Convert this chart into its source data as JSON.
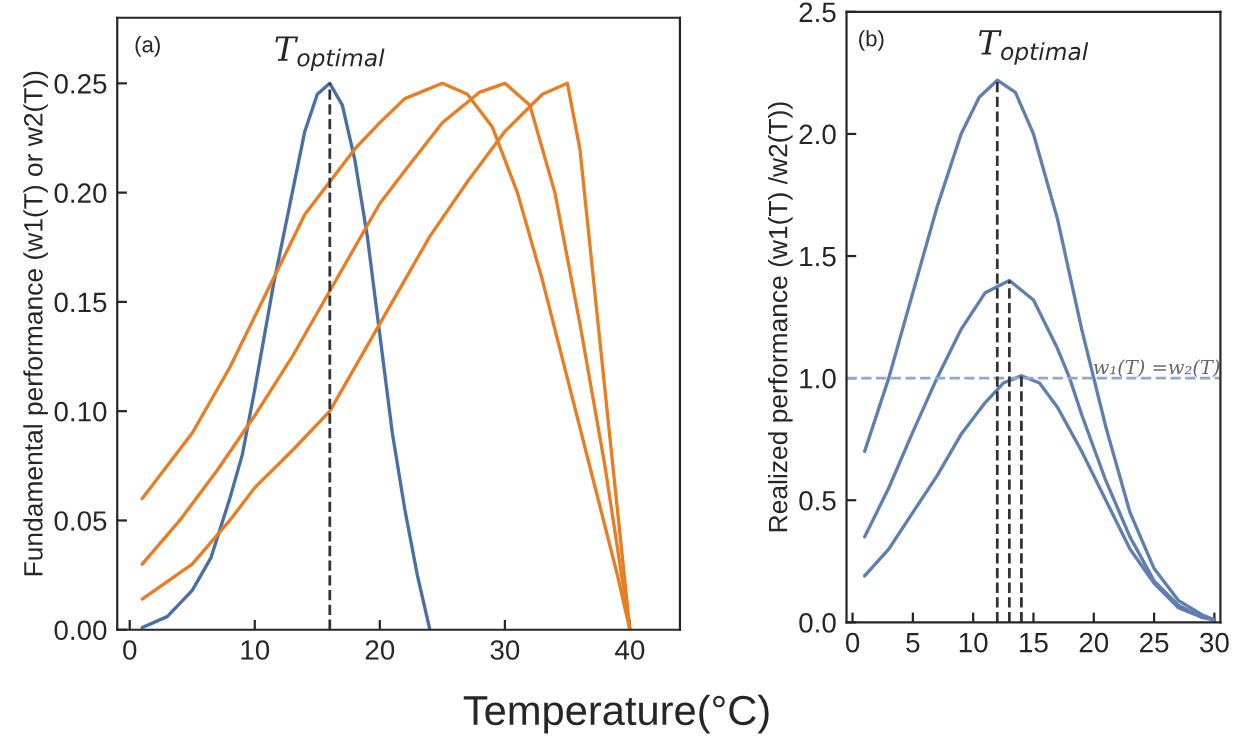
{
  "chart_data": [
    {
      "type": "line",
      "xlabel": "Temperature(°C)",
      "ylabel": "Fundamental performance (w1(T) or w2(T))",
      "xlim": [
        -1,
        44
      ],
      "xticks": [
        0,
        10,
        20,
        30,
        40
      ],
      "ylim": [
        0,
        0.28
      ],
      "yticks": [
        {
          "value": 0,
          "label": "0.00"
        },
        0.05,
        {
          "value": 0.1,
          "label": "0.10"
        },
        0.15,
        {
          "value": 0.2,
          "label": "0.20"
        },
        0.25
      ],
      "grid": false,
      "legend": false,
      "annotations": [
        "(a)"
      ],
      "ref_lines": [
        {
          "axis": "x",
          "value": 16,
          "label": "T$_{optimal}$",
          "color": "#333333",
          "line_style": "dashed"
        }
      ],
      "series": [
        {
          "color": "#4a6fa5",
          "x": [
            1,
            3,
            5,
            6.5,
            8,
            9,
            10,
            11.5,
            13,
            14,
            15,
            16,
            17,
            18,
            19,
            20,
            21,
            22,
            23,
            24
          ],
          "values": [
            0.001,
            0.006,
            0.018,
            0.033,
            0.06,
            0.08,
            0.11,
            0.158,
            0.2,
            0.228,
            0.245,
            0.25,
            0.24,
            0.215,
            0.18,
            0.135,
            0.09,
            0.055,
            0.025,
            0
          ]
        },
        {
          "color": "#e87d22",
          "x": [
            1,
            5,
            8,
            11,
            14,
            16,
            18,
            20,
            22,
            25,
            27,
            29,
            31,
            33,
            35,
            37,
            39,
            40
          ],
          "values": [
            0.06,
            0.09,
            0.12,
            0.155,
            0.19,
            0.205,
            0.22,
            0.232,
            0.243,
            0.25,
            0.245,
            0.23,
            0.2,
            0.16,
            0.115,
            0.07,
            0.025,
            0
          ]
        },
        {
          "color": "#e87d22",
          "x": [
            1,
            4,
            7,
            10,
            13,
            16,
            18,
            20,
            22,
            25,
            28,
            30,
            32,
            34,
            36,
            38,
            40
          ],
          "values": [
            0.03,
            0.05,
            0.073,
            0.098,
            0.125,
            0.155,
            0.175,
            0.195,
            0.21,
            0.232,
            0.246,
            0.25,
            0.24,
            0.2,
            0.14,
            0.075,
            0
          ]
        },
        {
          "color": "#e87d22",
          "x": [
            1,
            5,
            8,
            10,
            13,
            16,
            19,
            21,
            24,
            27,
            30,
            33,
            35,
            36,
            38,
            40
          ],
          "values": [
            0.014,
            0.03,
            0.05,
            0.065,
            0.082,
            0.1,
            0.13,
            0.15,
            0.18,
            0.205,
            0.228,
            0.245,
            0.25,
            0.22,
            0.11,
            0
          ]
        }
      ]
    },
    {
      "type": "line",
      "ylabel": "Realized performance (w1(T) /w2(T))",
      "xlim": [
        -0.5,
        30.5
      ],
      "xticks": [
        0,
        5,
        10,
        15,
        20,
        25,
        30
      ],
      "ylim": [
        0,
        2.5
      ],
      "yticks": [
        {
          "value": 0,
          "label": "0.0"
        },
        0.5,
        {
          "value": 1,
          "label": "1.0"
        },
        1.5,
        {
          "value": 2,
          "label": "2.0"
        },
        2.5
      ],
      "grid": false,
      "legend": false,
      "annotations": [
        "(b)",
        "T$_{optimal}$"
      ],
      "ref_lines": [
        {
          "axis": "y",
          "value": 1.0,
          "label": "w₁(T) =w₂(T)",
          "color": "#8fa8cc",
          "line_style": "dashed"
        },
        {
          "axis": "x",
          "value": 12,
          "color": "#333333",
          "line_style": "dashed"
        },
        {
          "axis": "x",
          "value": 13,
          "color": "#333333",
          "line_style": "dashed"
        },
        {
          "axis": "x",
          "value": 14,
          "color": "#333333",
          "line_style": "dashed"
        }
      ],
      "series": [
        {
          "color": "#5f7fb0",
          "x": [
            1,
            3,
            5,
            7,
            9,
            10.5,
            12,
            13.5,
            15,
            17,
            19,
            20,
            21,
            23,
            25,
            27,
            29,
            30
          ],
          "values": [
            0.7,
            1.0,
            1.35,
            1.7,
            2.0,
            2.15,
            2.22,
            2.17,
            2.0,
            1.65,
            1.2,
            1.0,
            0.8,
            0.45,
            0.22,
            0.09,
            0.03,
            0.01
          ]
        },
        {
          "color": "#5f7fb0",
          "x": [
            1,
            3,
            5,
            7,
            9,
            11,
            13,
            15,
            17,
            18,
            19,
            21,
            23,
            25,
            27,
            29,
            30
          ],
          "values": [
            0.35,
            0.55,
            0.78,
            1.0,
            1.2,
            1.35,
            1.4,
            1.32,
            1.12,
            1.0,
            0.85,
            0.58,
            0.35,
            0.17,
            0.07,
            0.02,
            0.01
          ]
        },
        {
          "color": "#5f7fb0",
          "x": [
            1,
            3,
            5,
            7,
            9,
            11,
            12.5,
            14,
            15.5,
            17,
            19,
            21,
            23,
            25,
            27,
            29,
            30
          ],
          "values": [
            0.19,
            0.3,
            0.45,
            0.6,
            0.77,
            0.9,
            0.98,
            1.01,
            0.98,
            0.88,
            0.7,
            0.5,
            0.3,
            0.16,
            0.06,
            0.02,
            0.01
          ]
        }
      ]
    }
  ]
}
